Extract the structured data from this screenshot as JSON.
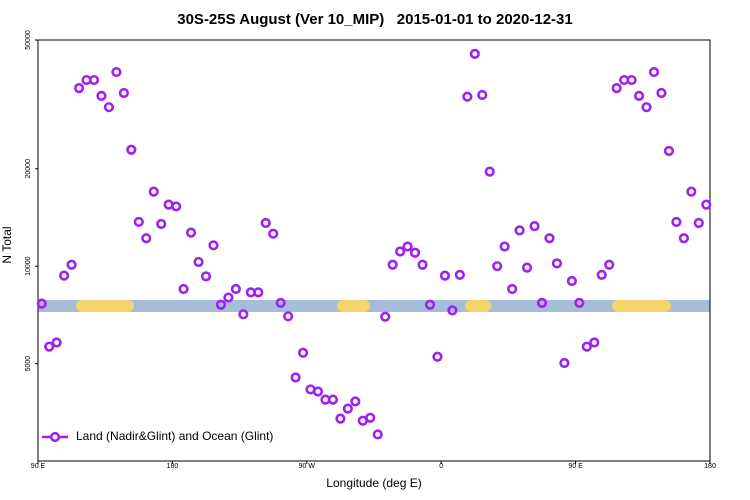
{
  "chart_data": {
    "type": "scatter",
    "title": "30S-25S August (Ver 10_MIP)   2015-01-01 to 2020-12-31",
    "xlabel": "Longitude (deg E)",
    "ylabel": "N Total",
    "xlim": [
      90,
      540
    ],
    "xticks": [
      {
        "value": 90,
        "label": "90 E"
      },
      {
        "value": 180,
        "label": "180"
      },
      {
        "value": 270,
        "label": "90 W"
      },
      {
        "value": 360,
        "label": "0"
      },
      {
        "value": 450,
        "label": "90 E"
      },
      {
        "value": 540,
        "label": "180"
      }
    ],
    "ylim": [
      2500,
      50000
    ],
    "ylog": true,
    "yticks": [
      5000,
      10000,
      20000,
      50000
    ],
    "legend": "lower left",
    "series": [
      {
        "name": "Land (Nadir&Glint) and Ocean (Glint)",
        "color": "#a020f0",
        "x": [
          92.5,
          97.5,
          102.5,
          107.5,
          112.5,
          117.5,
          122.5,
          127.5,
          132.5,
          137.5,
          142.5,
          147.5,
          152.5,
          157.5,
          162.5,
          167.5,
          172.5,
          177.5,
          182.5,
          187.5,
          192.5,
          197.5,
          202.5,
          207.5,
          212.5,
          217.5,
          222.5,
          227.5,
          232.5,
          237.5,
          242.5,
          247.5,
          252.5,
          257.5,
          262.5,
          267.5,
          272.5,
          277.5,
          282.5,
          287.5,
          292.5,
          297.5,
          302.5,
          307.5,
          312.5,
          317.5,
          322.5,
          327.5,
          332.5,
          337.5,
          342.5,
          347.5,
          352.5,
          357.5,
          362.5,
          367.5,
          372.5,
          377.5,
          382.5,
          387.5,
          392.5,
          397.5,
          402.5,
          407.5,
          412.5,
          417.5,
          422.5,
          427.5,
          432.5,
          437.5,
          442.5,
          447.5,
          452.5,
          457.5,
          462.5,
          467.5,
          472.5,
          477.5,
          482.5,
          487.5,
          492.5,
          497.5,
          502.5,
          507.5,
          512.5,
          517.5,
          522.5,
          527.5,
          532.5,
          537.5
        ],
        "values": [
          7660,
          5640,
          5810,
          9350,
          10100,
          35500,
          37600,
          37600,
          33600,
          31000,
          39800,
          34300,
          22900,
          13700,
          12200,
          17000,
          13500,
          15500,
          15300,
          8500,
          12700,
          10300,
          9300,
          11600,
          7600,
          8000,
          8500,
          7100,
          8300,
          8300,
          13600,
          12600,
          7700,
          7000,
          4530,
          5400,
          4160,
          4100,
          3870,
          3870,
          3380,
          3630,
          3820,
          3330,
          3400,
          3020,
          6980,
          10100,
          11100,
          11500,
          11000,
          10100,
          7600,
          5250,
          9350,
          7300,
          9400,
          33400,
          45300,
          33800,
          19600,
          10000,
          11500,
          8500,
          12900,
          9900,
          13300,
          7700,
          12200,
          10200,
          5020,
          9000,
          7700,
          5640,
          5810,
          9400,
          10100,
          35500,
          37600,
          37600,
          33600,
          31000,
          39800,
          34300,
          22700,
          13700,
          12200,
          17000,
          13600,
          15500
        ]
      }
    ]
  }
}
